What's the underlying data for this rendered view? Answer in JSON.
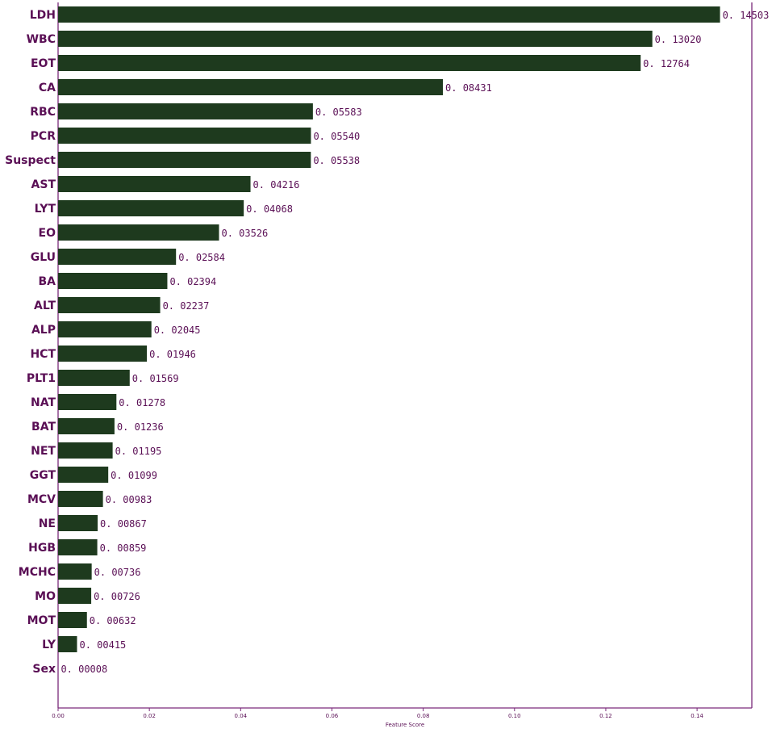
{
  "chart_data": {
    "type": "bar",
    "orientation": "horizontal",
    "title": "",
    "xlabel": "Feature Score",
    "ylabel": "",
    "xlim": [
      0,
      0.152
    ],
    "x_ticks": [
      0.0,
      0.02,
      0.04,
      0.06,
      0.08,
      0.1,
      0.12,
      0.14
    ],
    "x_tick_labels": [
      "0.00",
      "0.02",
      "0.04",
      "0.06",
      "0.08",
      "0.10",
      "0.12",
      "0.14"
    ],
    "grid": false,
    "bar_color": "#1e3a1e",
    "text_color": "#5a0f55",
    "axis_color": "#7a2a7a",
    "categories": [
      "LDH",
      "WBC",
      "EOT",
      "CA",
      "RBC",
      "PCR",
      "Suspect",
      "AST",
      "LYT",
      "EO",
      "GLU",
      "BA",
      "ALT",
      "ALP",
      "HCT",
      "PLT1",
      "NAT",
      "BAT",
      "NET",
      "GGT",
      "MCV",
      "NE",
      "HGB",
      "MCHC",
      "MO",
      "MOT",
      "LY",
      "Sex"
    ],
    "values": [
      0.14503,
      0.1302,
      0.12764,
      0.08431,
      0.05583,
      0.0554,
      0.05538,
      0.04216,
      0.04068,
      0.03526,
      0.02584,
      0.02394,
      0.02237,
      0.02045,
      0.01946,
      0.01569,
      0.01278,
      0.01236,
      0.01195,
      0.01099,
      0.00983,
      0.00867,
      0.00859,
      0.00736,
      0.00726,
      0.00632,
      0.00415,
      8e-05
    ],
    "value_labels": [
      "0. 14503",
      "0. 13020",
      "0. 12764",
      "0. 08431",
      "0. 05583",
      "0. 05540",
      "0. 05538",
      "0. 04216",
      "0. 04068",
      "0. 03526",
      "0. 02584",
      "0. 02394",
      "0. 02237",
      "0. 02045",
      "0. 01946",
      "0. 01569",
      "0. 01278",
      "0. 01236",
      "0. 01195",
      "0. 01099",
      "0. 00983",
      "0. 00867",
      "0. 00859",
      "0. 00736",
      "0. 00726",
      "0. 00632",
      "0. 00415",
      "0. 00008"
    ]
  }
}
